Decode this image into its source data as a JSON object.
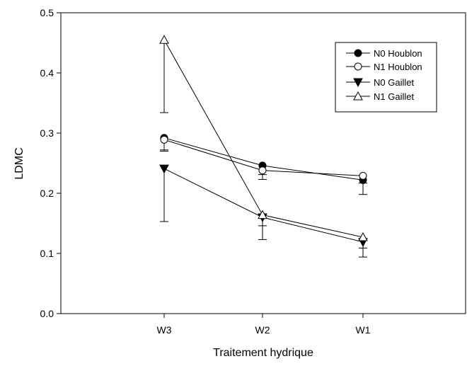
{
  "chart_data": {
    "type": "line",
    "title": "",
    "xlabel": "Traitement hydrique",
    "ylabel": "LDMC",
    "categories": [
      "W3",
      "W2",
      "W1"
    ],
    "ylim": [
      0.0,
      0.5
    ],
    "yticks": [
      "0.0",
      "0.1",
      "0.2",
      "0.3",
      "0.4",
      "0.5"
    ],
    "grid": false,
    "legend_position": "top-right",
    "series": [
      {
        "name": "N0 Houblon",
        "marker": "circle-filled",
        "values": [
          0.292,
          0.246,
          0.222
        ],
        "error_low": [
          0.022,
          0.015,
          0.024
        ]
      },
      {
        "name": "N1 Houblon",
        "marker": "circle-open",
        "values": [
          0.289,
          0.238,
          0.229
        ],
        "error_low": [
          0.017,
          0.015,
          0.012
        ]
      },
      {
        "name": "N0 Gaillet",
        "marker": "triangle-down-filled",
        "values": [
          0.241,
          0.16,
          0.119
        ],
        "error_low": [
          0.088,
          0.037,
          0.025
        ]
      },
      {
        "name": "N1 Gaillet",
        "marker": "triangle-up-open",
        "values": [
          0.455,
          0.164,
          0.127
        ],
        "error_low": [
          0.121,
          0.018,
          0.018
        ]
      }
    ]
  }
}
